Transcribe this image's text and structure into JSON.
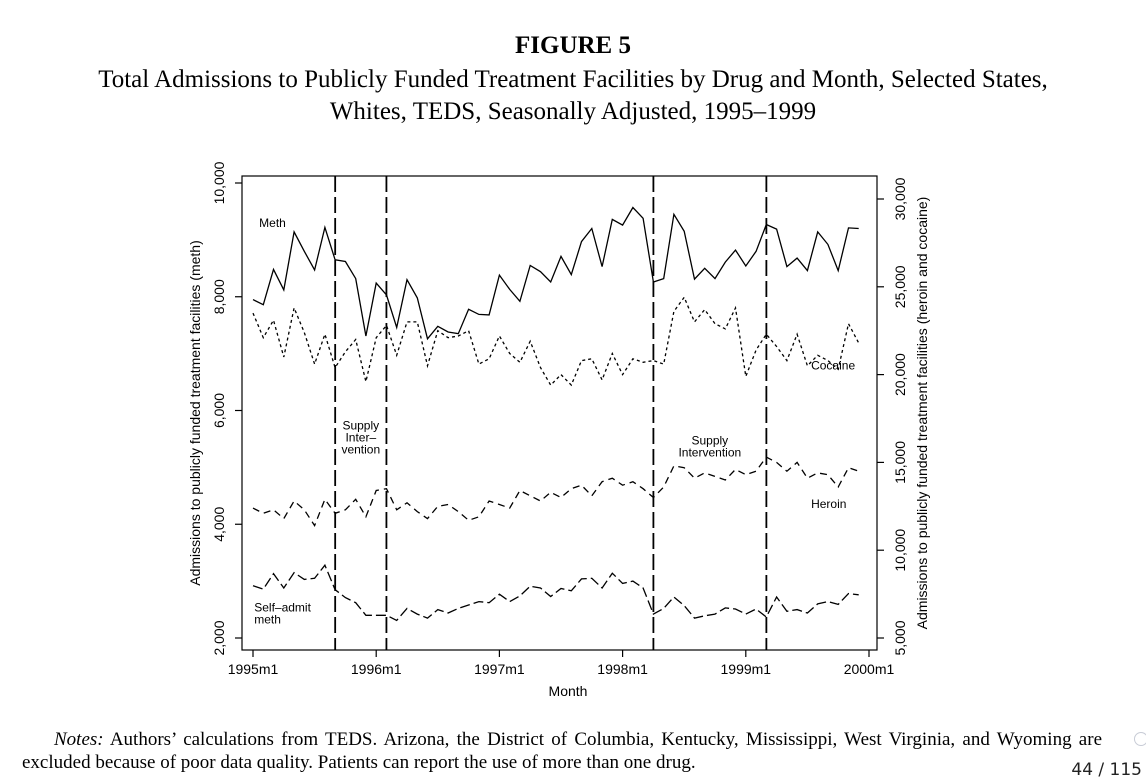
{
  "figure_label": "FIGURE 5",
  "title_line1": "Total Admissions to Publicly Funded Treatment Facilities by Drug and Month, Selected States,",
  "title_line2": "Whites, TEDS, Seasonally Adjusted, 1995–1999",
  "notes": {
    "label": "Notes:",
    "text": "Authors’ calculations from TEDS. Arizona, the District of Columbia, Kentucky, Mississippi, West Virginia, and Wyoming are excluded because of poor data quality. Patients can report the use of more than one drug."
  },
  "page_indicator": "44 / 115",
  "chart_data": {
    "type": "line",
    "title": "Total Admissions to Publicly Funded Treatment Facilities by Drug and Month, Selected States, Whites, TEDS, Seasonally Adjusted, 1995–1999",
    "xlabel": "Month",
    "ylabel_left": "Admissions to publicly funded treatment facilities (meth)",
    "ylabel_right": "Admissions to publicly funded treatment facilities (heroin and cocaine)",
    "xlim": [
      1995.0,
      2000.0
    ],
    "x_ticks": [
      {
        "value": 1995,
        "label": "1995m1"
      },
      {
        "value": 1996,
        "label": "1996m1"
      },
      {
        "value": 1997,
        "label": "1997m1"
      },
      {
        "value": 1998,
        "label": "1998m1"
      },
      {
        "value": 1999,
        "label": "1999m1"
      },
      {
        "value": 2000,
        "label": "2000m1"
      }
    ],
    "ylim_left": [
      1800,
      10100
    ],
    "y_ticks_left": [
      {
        "value": 2000,
        "label": "2,000"
      },
      {
        "value": 4000,
        "label": "4,000"
      },
      {
        "value": 6000,
        "label": "6,000"
      },
      {
        "value": 8000,
        "label": "8,000"
      },
      {
        "value": 10000,
        "label": "10,000"
      }
    ],
    "ylim_right": [
      4500,
      31000
    ],
    "y_ticks_right": [
      {
        "value": 5000,
        "label": "5,000"
      },
      {
        "value": 10000,
        "label": "10,000"
      },
      {
        "value": 15000,
        "label": "15,000"
      },
      {
        "value": 20000,
        "label": "20,000"
      },
      {
        "value": 25000,
        "label": "25,000"
      },
      {
        "value": 30000,
        "label": "30,000"
      }
    ],
    "x_start": 1995.0,
    "x_step": 0.0833333,
    "intervention_lines": [
      1995.667,
      1996.083,
      1998.25,
      1999.167
    ],
    "interventions": [
      {
        "label_lines": [
          "Supply",
          "Inter–",
          "vention"
        ],
        "x_center": 1995.875,
        "y_left": 5670
      },
      {
        "label_lines": [
          "Supply",
          "Intervention"
        ],
        "x_center": 1998.708,
        "y_left": 5400
      }
    ],
    "series": [
      {
        "name": "Meth",
        "axis": "left",
        "dash": "solid",
        "label": "Meth",
        "label_x": 1995.05,
        "label_y": 9230,
        "values": [
          7950,
          7860,
          8480,
          8120,
          9140,
          8800,
          8470,
          9220,
          8650,
          8620,
          8320,
          7310,
          8240,
          8030,
          7460,
          8300,
          7980,
          7260,
          7480,
          7380,
          7350,
          7780,
          7690,
          7680,
          8380,
          8130,
          7920,
          8550,
          8440,
          8260,
          8710,
          8390,
          8970,
          9200,
          8530,
          9360,
          9260,
          9570,
          9380,
          8260,
          8320,
          9450,
          9150,
          8310,
          8500,
          8320,
          8610,
          8820,
          8540,
          8800,
          9270,
          9190,
          8530,
          8680,
          8460,
          9140,
          8920,
          8460,
          9210,
          9200
        ]
      },
      {
        "name": "Cocaine",
        "axis": "right",
        "dash": "3,3",
        "label": "Cocaine",
        "label_x": 1999.53,
        "label_y_right": 20300,
        "values": [
          23500,
          22100,
          23100,
          21000,
          23800,
          22400,
          20600,
          22300,
          20400,
          21300,
          22000,
          19600,
          22100,
          22800,
          21100,
          23000,
          23000,
          20500,
          22500,
          22100,
          22200,
          22500,
          20600,
          20900,
          22200,
          21200,
          20700,
          21900,
          20400,
          19400,
          20000,
          19400,
          20800,
          20900,
          19700,
          21200,
          20000,
          20900,
          20700,
          20800,
          20600,
          23600,
          24400,
          23000,
          23700,
          22900,
          22600,
          23800,
          19900,
          21400,
          22300,
          21600,
          20800,
          22300,
          20500,
          21100,
          20800,
          20300,
          22900,
          21800
        ]
      },
      {
        "name": "Heroin",
        "axis": "right",
        "dash": "7,5",
        "label": "Heroin",
        "label_x": 1999.53,
        "label_y_right": 12400,
        "values": [
          12400,
          12100,
          12300,
          11800,
          12800,
          12300,
          11400,
          12900,
          12100,
          12300,
          12900,
          11900,
          13400,
          13500,
          12300,
          12700,
          12200,
          11800,
          12500,
          12600,
          12200,
          11700,
          11900,
          12800,
          12600,
          12400,
          13400,
          13100,
          12800,
          13300,
          13000,
          13500,
          13700,
          13100,
          13900,
          14100,
          13700,
          13900,
          13500,
          13000,
          13600,
          14800,
          14700,
          14100,
          14400,
          14200,
          14000,
          14600,
          14300,
          14500,
          15300,
          15000,
          14500,
          15000,
          14100,
          14400,
          14300,
          13600,
          14700,
          14500
        ]
      },
      {
        "name": "Self-admit meth",
        "axis": "left",
        "dash": "10,4",
        "label_lines": [
          "Self–admit",
          "meth"
        ],
        "label_x": 1995.01,
        "label_y": 2470,
        "values": [
          2920,
          2860,
          3130,
          2880,
          3150,
          3030,
          3050,
          3280,
          2850,
          2710,
          2620,
          2400,
          2400,
          2400,
          2310,
          2520,
          2420,
          2350,
          2500,
          2440,
          2520,
          2580,
          2640,
          2620,
          2770,
          2640,
          2740,
          2910,
          2880,
          2730,
          2870,
          2830,
          3040,
          3050,
          2880,
          3140,
          2960,
          3000,
          2880,
          2420,
          2520,
          2720,
          2570,
          2350,
          2390,
          2420,
          2530,
          2510,
          2420,
          2510,
          2370,
          2720,
          2470,
          2500,
          2440,
          2600,
          2640,
          2590,
          2780,
          2760
        ]
      }
    ]
  }
}
